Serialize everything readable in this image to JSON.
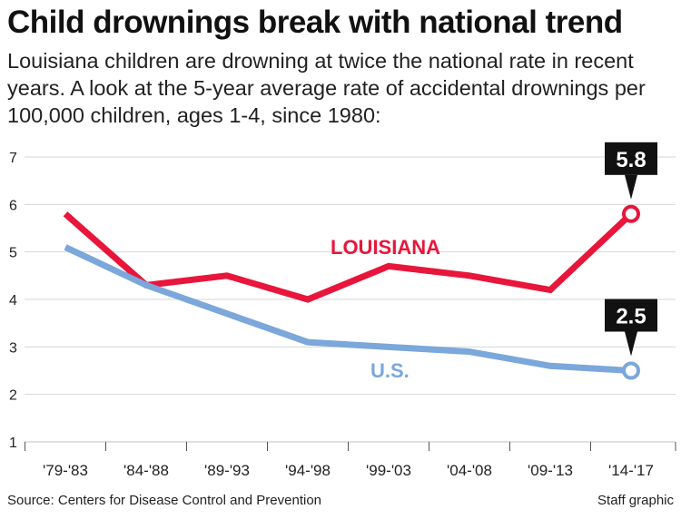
{
  "title": "Child drownings break with national trend",
  "subtitle": "Louisiana children are drowning at twice the national rate in recent years. A look at the 5-year average rate of accidental drownings per 100,000 children, ages 1-4, since 1980:",
  "source": "Source: Centers for Disease Control and Prevention",
  "credit": "Staff graphic",
  "colors": {
    "louisiana": "#e8163b",
    "us": "#7ba7da",
    "grid": "#d6d6d6",
    "callout": "#111111"
  },
  "chart_data": {
    "type": "line",
    "categories": [
      "'79-'83",
      "'84-'88",
      "'89-'93",
      "'94-'98",
      "'99-'03",
      "'04-'08",
      "'09-'13",
      "'14-'17"
    ],
    "ylim": [
      1,
      7
    ],
    "yticks": [
      "1",
      "2",
      "3",
      "4",
      "5",
      "6",
      "7"
    ],
    "grid": true,
    "series": [
      {
        "name": "LOUISIANA",
        "key": "louisiana",
        "values": [
          5.8,
          4.3,
          4.5,
          4.0,
          4.7,
          4.5,
          4.2,
          5.8
        ]
      },
      {
        "name": "U.S.",
        "key": "us",
        "values": [
          5.1,
          4.3,
          3.7,
          3.1,
          3.0,
          2.9,
          2.6,
          2.5
        ]
      }
    ],
    "annotations": [
      {
        "series": "louisiana",
        "index": 7,
        "text": "5.8"
      },
      {
        "series": "us",
        "index": 7,
        "text": "2.5"
      }
    ]
  }
}
